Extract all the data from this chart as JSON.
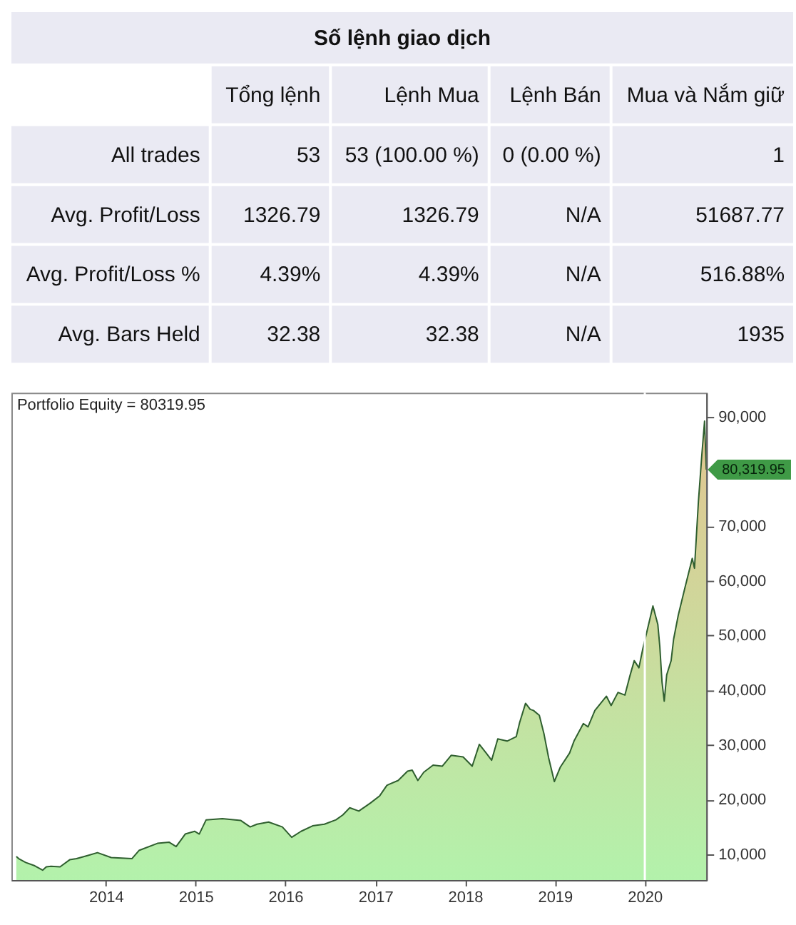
{
  "chart_data": [
    {
      "type": "other",
      "title": "Số lệnh giao dịch",
      "categories": [
        null,
        "Tổng lệnh",
        "Lệnh Mua",
        "Lệnh Bán",
        "Mua và Nắm giữ"
      ],
      "y_categories": [
        "All trades",
        "Avg. Profit/Loss",
        "Avg. Profit/Loss %",
        "Avg. Bars Held"
      ],
      "cell_labels": [
        [
          "53",
          "53 (100.00 %)",
          "0 (0.00 %)",
          "1"
        ],
        [
          "1326.79",
          "1326.79",
          "N/A",
          "51687.77"
        ],
        [
          "4.39%",
          "4.39%",
          "N/A",
          "516.88%"
        ],
        [
          "32.38",
          "32.38",
          "N/A",
          "1935"
        ]
      ]
    },
    {
      "type": "area",
      "title": "Portfolio Equity = 80319.95",
      "x": [
        "2013-01-02",
        "2013-01-12",
        "2013-02-09",
        "2013-03-18",
        "2013-04-19",
        "2013-05-04",
        "2013-05-23",
        "2013-06-29",
        "2013-08-07",
        "2013-09-04",
        "2013-10-21",
        "2013-11-28",
        "2014-01-23",
        "2014-04-17",
        "2014-05-16",
        "2014-07-30",
        "2014-09-16",
        "2014-10-14",
        "2014-11-20",
        "2014-12-28",
        "2015-01-16",
        "2015-02-13",
        "2015-04-20",
        "2015-07-03",
        "2015-08-11",
        "2015-09-08",
        "2015-10-25",
        "2015-12-20",
        "2016-01-27",
        "2016-03-05",
        "2016-04-21",
        "2016-06-08",
        "2016-07-25",
        "2016-08-22",
        "2016-09-19",
        "2016-10-26",
        "2016-12-13",
        "2017-01-19",
        "2017-02-17",
        "2017-02-26",
        "2017-04-04",
        "2017-05-12",
        "2017-05-31",
        "2017-06-23",
        "2017-07-17",
        "2017-08-24",
        "2017-09-30",
        "2017-11-06",
        "2017-12-24",
        "2018-01-30",
        "2018-02-28",
        "2018-03-28",
        "2018-04-19",
        "2018-05-14",
        "2018-06-21",
        "2018-07-28",
        "2018-08-11",
        "2018-09-04",
        "2018-09-23",
        "2018-10-06",
        "2018-10-30",
        "2018-11-18",
        "2018-12-07",
        "2018-12-30",
        "2019-01-23",
        "2019-03-02",
        "2019-03-20",
        "2019-04-27",
        "2019-05-16",
        "2019-06-13",
        "2019-07-30",
        "2019-08-18",
        "2019-09-15",
        "2019-10-13",
        "2019-11-01",
        "2019-11-20",
        "2019-12-09",
        "2019-12-25",
        "2020-01-12",
        "2020-02-04",
        "2020-02-24",
        "2020-03-03",
        "2020-03-12",
        "2020-03-21",
        "2020-03-31",
        "2020-04-18",
        "2020-04-28",
        "2020-05-17",
        "2020-06-14",
        "2020-07-13",
        "2020-07-22",
        "2020-08-07",
        "2020-08-21",
        "2020-09-01",
        "2020-09-08"
      ],
      "series": [
        {
          "color": "#8ef08a",
          "values": [
            9600,
            9200,
            8500,
            7900,
            7100,
            7700,
            7800,
            7700,
            9000,
            9200,
            9800,
            10300,
            9400,
            9200,
            10700,
            12000,
            12200,
            11400,
            13700,
            14200,
            13700,
            16300,
            16500,
            16200,
            15000,
            15500,
            15900,
            15000,
            13100,
            14200,
            15200,
            15500,
            16300,
            17200,
            18500,
            17900,
            19400,
            20700,
            22600,
            22800,
            23500,
            25200,
            25400,
            23500,
            25000,
            26300,
            26100,
            28100,
            27800,
            26100,
            30100,
            28500,
            27200,
            31100,
            30700,
            31500,
            34100,
            37600,
            36500,
            36300,
            35400,
            32000,
            27600,
            23300,
            25900,
            28500,
            30700,
            33900,
            33300,
            36300,
            38900,
            37200,
            39600,
            39100,
            42400,
            45400,
            44100,
            47600,
            51000,
            55400,
            52000,
            48000,
            41500,
            38000,
            42800,
            45400,
            49300,
            53700,
            58900,
            64100,
            62300,
            74500,
            83100,
            89200,
            80319.95
          ]
        }
      ],
      "xlim": [
        "2012-12-13",
        "2020-09-08"
      ],
      "xticks": [
        "2014",
        "2015",
        "2016",
        "2017",
        "2018",
        "2019",
        "2020"
      ],
      "ylim": [
        5300,
        94400
      ],
      "yticks": [
        {
          "value": 10000,
          "label": "10,000"
        },
        {
          "value": 20000,
          "label": "20,000"
        },
        {
          "value": 30000,
          "label": "30,000"
        },
        {
          "value": 40000,
          "label": "40,000"
        },
        {
          "value": 50000,
          "label": "50,000"
        },
        {
          "value": 60000,
          "label": "60,000"
        },
        {
          "value": 70000,
          "label": "70,000"
        },
        {
          "value": 90000,
          "label": "90,000"
        }
      ],
      "ref_lines": [
        {
          "axis": "x",
          "value": "2020-01-02",
          "color": "#ffffff"
        }
      ],
      "annotations": [
        {
          "text": "80,319.95",
          "x": "2020-09-08",
          "y": 80319.95
        }
      ]
    }
  ]
}
